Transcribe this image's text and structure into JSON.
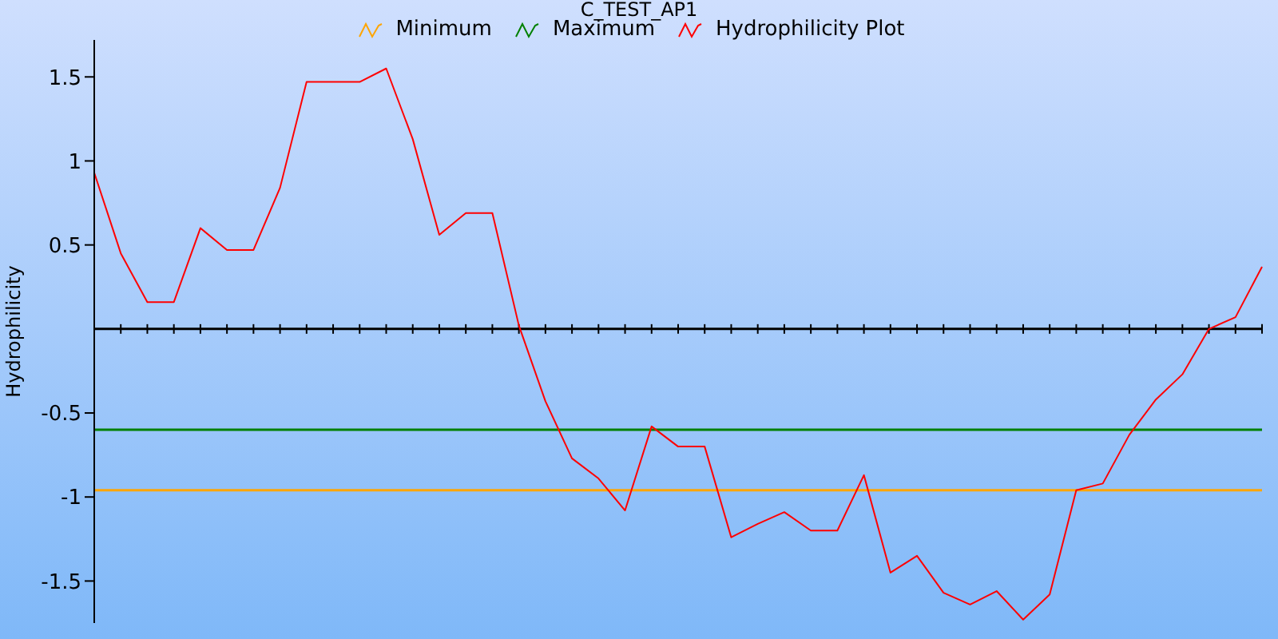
{
  "chart_data": {
    "type": "line",
    "title": "C_TEST_AP1",
    "ylabel": "Hydrophilicity",
    "categories": [
      null,
      null,
      null,
      null,
      null,
      null,
      null,
      null,
      null,
      null,
      null,
      null,
      null,
      null,
      null,
      null,
      null,
      null,
      null,
      null,
      null,
      null,
      null,
      null,
      null,
      null,
      null,
      null,
      null,
      null,
      null,
      null,
      null,
      null,
      null,
      null,
      null,
      null,
      null,
      null,
      null,
      null,
      null,
      null,
      null
    ],
    "series": [
      {
        "name": "Minimum",
        "color": "#ffa500",
        "values": [
          -0.96,
          -0.96,
          -0.96,
          -0.96,
          -0.96,
          -0.96,
          -0.96,
          -0.96,
          -0.96,
          -0.96,
          -0.96,
          -0.96,
          -0.96,
          -0.96,
          -0.96,
          -0.96,
          -0.96,
          -0.96,
          -0.96,
          -0.96,
          -0.96,
          -0.96,
          -0.96,
          -0.96,
          -0.96,
          -0.96,
          -0.96,
          -0.96,
          -0.96,
          -0.96,
          -0.96,
          -0.96,
          -0.96,
          -0.96,
          -0.96,
          -0.96,
          -0.96,
          -0.96,
          -0.96,
          -0.96,
          -0.96,
          -0.96,
          -0.96,
          -0.96,
          -0.96
        ]
      },
      {
        "name": "Maximum",
        "color": "#008000",
        "values": [
          -0.6,
          -0.6,
          -0.6,
          -0.6,
          -0.6,
          -0.6,
          -0.6,
          -0.6,
          -0.6,
          -0.6,
          -0.6,
          -0.6,
          -0.6,
          -0.6,
          -0.6,
          -0.6,
          -0.6,
          -0.6,
          -0.6,
          -0.6,
          -0.6,
          -0.6,
          -0.6,
          -0.6,
          -0.6,
          -0.6,
          -0.6,
          -0.6,
          -0.6,
          -0.6,
          -0.6,
          -0.6,
          -0.6,
          -0.6,
          -0.6,
          -0.6,
          -0.6,
          -0.6,
          -0.6,
          -0.6,
          -0.6,
          -0.6,
          -0.6,
          -0.6,
          -0.6
        ]
      },
      {
        "name": "Hydrophilicity Plot",
        "color": "#ff0000",
        "values": [
          0.93,
          0.45,
          0.16,
          0.16,
          0.6,
          0.47,
          0.47,
          0.84,
          1.47,
          1.47,
          1.47,
          1.55,
          1.13,
          0.56,
          0.69,
          0.69,
          0.02,
          -0.43,
          -0.77,
          -0.89,
          -1.08,
          -0.58,
          -0.7,
          -0.7,
          -1.24,
          -1.16,
          -1.09,
          -1.2,
          -1.2,
          -0.87,
          -1.45,
          -1.35,
          -1.57,
          -1.64,
          -1.56,
          -1.73,
          -1.58,
          -0.96,
          -0.92,
          -0.63,
          -0.42,
          -0.27,
          0,
          0.07,
          0.37
        ]
      }
    ],
    "ylim": [
      -1.75,
      1.72
    ],
    "yticks": [
      1.5,
      1,
      0.5,
      -0.5,
      -1,
      -1.5
    ],
    "legend": "top",
    "marker": "none",
    "line_style": "solid",
    "tick_labels": "y"
  }
}
